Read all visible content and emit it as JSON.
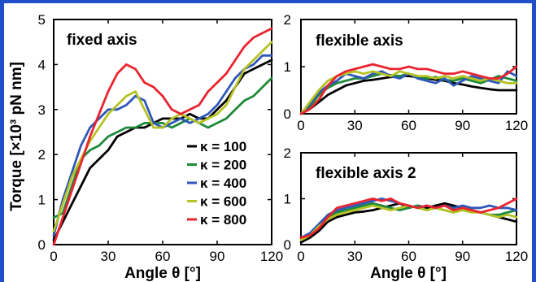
{
  "chart_data": [
    {
      "id": "fixed",
      "type": "line",
      "title": "fixed axis",
      "xlabel": "Angle θ [°]",
      "ylabel": "Torque [×10³ pN nm]",
      "xlim": [
        0,
        120
      ],
      "ylim": [
        0,
        5
      ],
      "xticks": [
        0,
        30,
        60,
        90,
        120
      ],
      "yticks": [
        0,
        1,
        2,
        3,
        4,
        5
      ],
      "x": [
        0,
        5,
        10,
        15,
        20,
        25,
        30,
        35,
        40,
        45,
        50,
        55,
        60,
        65,
        70,
        75,
        80,
        85,
        90,
        95,
        100,
        105,
        110,
        115,
        120
      ],
      "series": [
        {
          "name": "κ = 100",
          "color": "#000000",
          "values": [
            0.1,
            0.5,
            0.9,
            1.3,
            1.7,
            1.9,
            2.1,
            2.4,
            2.5,
            2.6,
            2.6,
            2.7,
            2.8,
            2.8,
            2.8,
            2.9,
            2.8,
            2.8,
            3.0,
            3.2,
            3.5,
            3.8,
            3.9,
            4.0,
            4.1
          ]
        },
        {
          "name": "κ = 200",
          "color": "#1e8a3a",
          "values": [
            0.6,
            0.7,
            1.3,
            1.9,
            2.1,
            2.2,
            2.4,
            2.5,
            2.6,
            2.6,
            2.7,
            2.7,
            2.7,
            2.6,
            2.7,
            2.8,
            2.7,
            2.6,
            2.7,
            2.8,
            3.0,
            3.2,
            3.3,
            3.5,
            3.7
          ]
        },
        {
          "name": "κ = 400",
          "color": "#2f57b8",
          "values": [
            0.2,
            1.0,
            1.6,
            2.2,
            2.6,
            2.8,
            3.0,
            3.0,
            3.1,
            3.3,
            3.2,
            2.7,
            2.6,
            2.7,
            2.8,
            2.7,
            2.8,
            2.9,
            3.1,
            3.4,
            3.7,
            3.9,
            4.0,
            4.2,
            4.2
          ]
        },
        {
          "name": "κ = 600",
          "color": "#b5c224",
          "values": [
            0.3,
            0.9,
            1.5,
            1.9,
            2.3,
            2.6,
            2.9,
            3.1,
            3.3,
            3.4,
            3.0,
            2.6,
            2.6,
            2.8,
            2.9,
            2.8,
            2.7,
            2.8,
            2.9,
            3.1,
            3.5,
            3.9,
            4.1,
            4.3,
            4.5
          ]
        },
        {
          "name": "κ = 800",
          "color": "#e8242f",
          "values": [
            0.0,
            0.6,
            1.2,
            1.8,
            2.4,
            2.9,
            3.4,
            3.8,
            4.0,
            3.9,
            3.6,
            3.5,
            3.3,
            3.0,
            2.9,
            3.0,
            3.1,
            3.4,
            3.6,
            3.8,
            4.1,
            4.4,
            4.6,
            4.7,
            4.8
          ]
        }
      ],
      "legend": {
        "position": "bottom-right",
        "entries": [
          "κ = 100",
          "κ = 200",
          "κ = 400",
          "κ = 600",
          "κ = 800"
        ]
      }
    },
    {
      "id": "flexible",
      "type": "line",
      "title": "flexible axis",
      "xlabel": "",
      "ylabel": "",
      "xlim": [
        0,
        120
      ],
      "ylim": [
        0,
        2
      ],
      "xticks": [
        0,
        30,
        60,
        90,
        120
      ],
      "yticks": [
        0,
        1,
        2
      ],
      "x": [
        0,
        5,
        10,
        15,
        20,
        25,
        30,
        35,
        40,
        45,
        50,
        55,
        60,
        65,
        70,
        75,
        80,
        85,
        90,
        95,
        100,
        105,
        110,
        115,
        120
      ],
      "series": [
        {
          "name": "κ = 100",
          "color": "#000000",
          "values": [
            0.0,
            0.1,
            0.25,
            0.4,
            0.5,
            0.6,
            0.65,
            0.7,
            0.72,
            0.75,
            0.78,
            0.8,
            0.8,
            0.78,
            0.75,
            0.72,
            0.7,
            0.65,
            0.62,
            0.58,
            0.55,
            0.52,
            0.5,
            0.5,
            0.5
          ]
        },
        {
          "name": "κ = 200",
          "color": "#1e8a3a",
          "values": [
            0.0,
            0.15,
            0.4,
            0.55,
            0.65,
            0.7,
            0.75,
            0.75,
            0.8,
            0.85,
            0.82,
            0.8,
            0.85,
            0.8,
            0.75,
            0.78,
            0.72,
            0.7,
            0.75,
            0.7,
            0.65,
            0.72,
            0.8,
            0.75,
            0.7
          ]
        },
        {
          "name": "κ = 400",
          "color": "#2f57b8",
          "values": [
            0.0,
            0.2,
            0.45,
            0.6,
            0.7,
            0.85,
            0.8,
            0.75,
            0.85,
            0.9,
            0.8,
            0.75,
            0.85,
            0.75,
            0.7,
            0.65,
            0.75,
            0.6,
            0.7,
            0.8,
            0.75,
            0.7,
            0.65,
            0.9,
            0.8
          ]
        },
        {
          "name": "κ = 600",
          "color": "#b5c224",
          "values": [
            0.0,
            0.25,
            0.5,
            0.7,
            0.8,
            0.85,
            0.9,
            0.85,
            0.9,
            0.85,
            0.8,
            0.9,
            0.85,
            0.8,
            0.8,
            0.75,
            0.8,
            0.75,
            0.8,
            0.75,
            0.7,
            0.75,
            0.7,
            0.65,
            0.65
          ]
        },
        {
          "name": "κ = 800",
          "color": "#e8242f",
          "values": [
            0.0,
            0.1,
            0.3,
            0.6,
            0.8,
            0.9,
            0.95,
            1.0,
            1.05,
            1.0,
            0.95,
            0.95,
            1.0,
            0.95,
            0.95,
            0.9,
            0.85,
            0.85,
            0.9,
            0.85,
            0.8,
            0.75,
            0.75,
            0.85,
            1.0
          ]
        }
      ]
    },
    {
      "id": "flexible2",
      "type": "line",
      "title": "flexible axis 2",
      "xlabel": "Angle θ [°]",
      "ylabel": "",
      "xlim": [
        0,
        120
      ],
      "ylim": [
        0,
        2
      ],
      "xticks": [
        0,
        30,
        60,
        90,
        120
      ],
      "yticks": [
        0,
        1,
        2
      ],
      "x": [
        0,
        5,
        10,
        15,
        20,
        25,
        30,
        35,
        40,
        45,
        50,
        55,
        60,
        65,
        70,
        75,
        80,
        85,
        90,
        95,
        100,
        105,
        110,
        115,
        120
      ],
      "series": [
        {
          "name": "κ = 100",
          "color": "#000000",
          "values": [
            0.05,
            0.15,
            0.3,
            0.5,
            0.6,
            0.65,
            0.7,
            0.72,
            0.75,
            0.8,
            0.85,
            0.9,
            0.8,
            0.85,
            0.8,
            0.85,
            0.9,
            0.85,
            0.8,
            0.75,
            0.7,
            0.65,
            0.6,
            0.55,
            0.5
          ]
        },
        {
          "name": "κ = 200",
          "color": "#1e8a3a",
          "values": [
            0.1,
            0.2,
            0.4,
            0.6,
            0.7,
            0.75,
            0.8,
            0.85,
            0.9,
            0.85,
            0.8,
            0.75,
            0.8,
            0.85,
            0.75,
            0.8,
            0.75,
            0.7,
            0.8,
            0.75,
            0.7,
            0.65,
            0.65,
            0.7,
            0.75
          ]
        },
        {
          "name": "κ = 400",
          "color": "#2f57b8",
          "values": [
            0.15,
            0.25,
            0.45,
            0.65,
            0.75,
            0.8,
            0.85,
            0.9,
            0.95,
            1.0,
            0.95,
            0.9,
            0.85,
            0.8,
            0.85,
            0.8,
            0.85,
            0.8,
            0.85,
            0.8,
            0.8,
            0.85,
            0.8,
            0.8,
            0.75
          ]
        },
        {
          "name": "κ = 600",
          "color": "#b5c224",
          "values": [
            0.1,
            0.2,
            0.4,
            0.55,
            0.65,
            0.7,
            0.75,
            0.8,
            0.85,
            0.8,
            0.75,
            0.8,
            0.85,
            0.8,
            0.75,
            0.8,
            0.75,
            0.7,
            0.75,
            0.7,
            0.7,
            0.65,
            0.6,
            0.65,
            0.6
          ]
        },
        {
          "name": "κ = 800",
          "color": "#e8242f",
          "values": [
            0.15,
            0.2,
            0.35,
            0.6,
            0.8,
            0.85,
            0.9,
            0.95,
            1.0,
            0.95,
            1.0,
            0.9,
            0.85,
            0.8,
            0.85,
            0.8,
            0.85,
            0.75,
            0.8,
            0.75,
            0.7,
            0.75,
            0.8,
            0.9,
            1.0
          ]
        }
      ]
    }
  ],
  "colors": {
    "frame_accent": "#1f4fc8"
  }
}
